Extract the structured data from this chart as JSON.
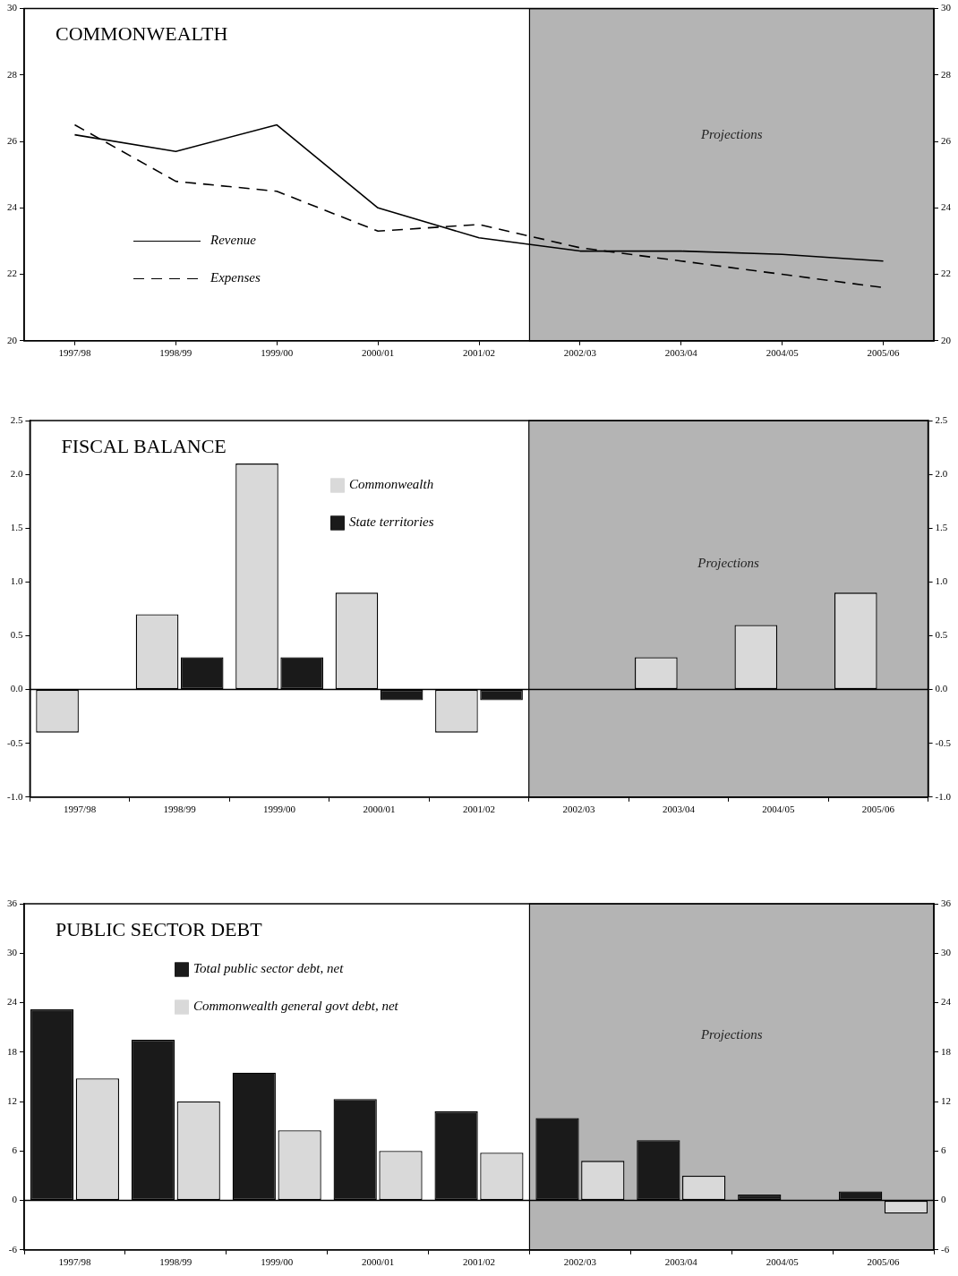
{
  "chart_data": [
    {
      "type": "line",
      "title": "COMMONWEALTH",
      "categories": [
        "1997/98",
        "1998/99",
        "1999/00",
        "2000/01",
        "2001/02",
        "2002/03",
        "2003/04",
        "2004/05",
        "2005/06"
      ],
      "series": [
        {
          "name": "Revenue",
          "color": "#000000",
          "line_style": "solid",
          "values": [
            26.2,
            25.7,
            26.5,
            24.0,
            23.1,
            22.7,
            22.7,
            22.6,
            22.4
          ]
        },
        {
          "name": "Expenses",
          "color": "#000000",
          "line_style": "dashed",
          "values": [
            26.5,
            24.8,
            24.5,
            23.3,
            23.5,
            22.8,
            22.4,
            22.0,
            21.6
          ]
        }
      ],
      "ylim": [
        20,
        30
      ],
      "yticks": [
        20,
        22,
        24,
        26,
        28,
        30
      ],
      "y2lim": [
        20,
        30
      ],
      "y2ticks": [
        20,
        22,
        24,
        26,
        28,
        30
      ],
      "bands": [
        {
          "axis": "x",
          "from": "2002/03",
          "to": "2005/06",
          "label": "Projections",
          "color": "#b4b4b4"
        }
      ],
      "legend": "left",
      "marker": "none"
    },
    {
      "type": "bar",
      "title": "FISCAL BALANCE",
      "categories": [
        "1997/98",
        "1998/99",
        "1999/00",
        "2000/01",
        "2001/02",
        "2002/03",
        "2003/04",
        "2004/05",
        "2005/06"
      ],
      "series": [
        {
          "name": "Commonwealth",
          "color": "#d9d9d9",
          "values": [
            -0.4,
            0.7,
            2.1,
            0.9,
            -0.4,
            null,
            0.3,
            0.6,
            0.9
          ]
        },
        {
          "name": "State territories",
          "color": "#1a1a1a",
          "values": [
            null,
            0.3,
            0.3,
            -0.1,
            -0.1,
            null,
            null,
            null,
            null
          ]
        }
      ],
      "ylim": [
        -1,
        2.5
      ],
      "yticks": [
        {
          "value": -1,
          "label": "-1.0"
        },
        -0.5,
        {
          "value": 0,
          "label": "0.0"
        },
        0.5,
        {
          "value": 1,
          "label": "1.0"
        },
        1.5,
        {
          "value": 2,
          "label": "2.0"
        },
        2.5
      ],
      "y2lim": [
        -1,
        2.5
      ],
      "y2ticks": [
        {
          "value": -1,
          "label": "-1.0"
        },
        -0.5,
        {
          "value": 0,
          "label": "0.0"
        },
        0.5,
        {
          "value": 1,
          "label": "1.0"
        },
        1.5,
        {
          "value": 2,
          "label": "2.0"
        },
        2.5
      ],
      "bands": [
        {
          "axis": "x",
          "from": "2002/03",
          "to": "2005/06",
          "label": "Projections",
          "color": "#b4b4b4"
        }
      ],
      "legend": "top"
    },
    {
      "type": "bar",
      "title": "PUBLIC SECTOR DEBT",
      "categories": [
        "1997/98",
        "1998/99",
        "1999/00",
        "2000/01",
        "2001/02",
        "2002/03",
        "2003/04",
        "2004/05",
        "2005/06"
      ],
      "series": [
        {
          "name": "Total public sector debt, net",
          "color": "#1a1a1a",
          "values": [
            23.2,
            19.5,
            15.5,
            12.3,
            10.8,
            10.0,
            7.3,
            0.7,
            1.1
          ]
        },
        {
          "name": "Commonwealth general govt debt, net",
          "color": "#d9d9d9",
          "values": [
            14.8,
            12.0,
            8.5,
            6.0,
            5.8,
            4.8,
            3.0,
            null,
            -1.6
          ]
        }
      ],
      "ylim": [
        -6,
        36
      ],
      "yticks": [
        -6,
        0,
        6,
        12,
        18,
        24,
        30,
        36
      ],
      "y2lim": [
        -6,
        36
      ],
      "y2ticks": [
        -6,
        0,
        6,
        12,
        18,
        24,
        30,
        36
      ],
      "bands": [
        {
          "axis": "x",
          "from": "2002/03",
          "to": "2005/06",
          "label": "Projections",
          "color": "#b4b4b4"
        }
      ],
      "legend": "top left"
    }
  ]
}
